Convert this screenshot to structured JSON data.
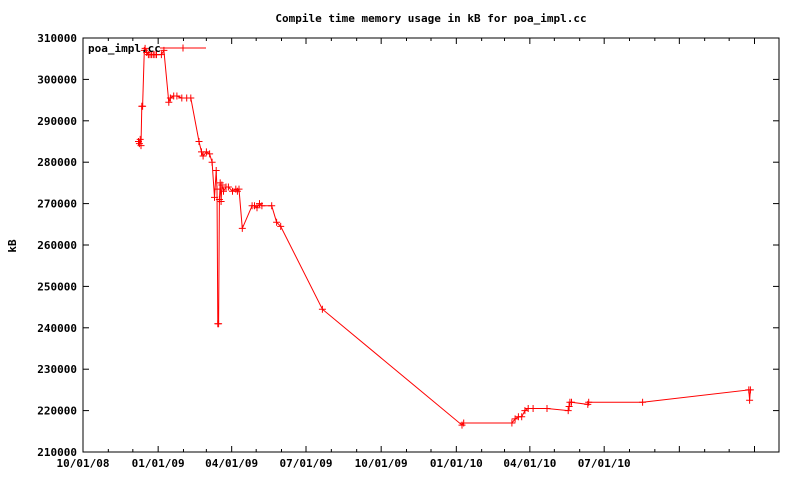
{
  "chart_data": {
    "type": "line",
    "title": "Compile time memory usage in kB for poa_impl.cc",
    "xlabel": "",
    "ylabel": "kB",
    "ylim": [
      210000,
      310000
    ],
    "yticks": [
      210000,
      220000,
      230000,
      240000,
      250000,
      260000,
      270000,
      280000,
      290000,
      300000,
      310000
    ],
    "xlim": [
      "2008-10-01",
      "2011-01-31"
    ],
    "xticks": [
      "2008-10-01",
      "2009-01-01",
      "2009-04-01",
      "2009-07-01",
      "2009-10-01",
      "2010-01-01",
      "2010-04-01",
      "2010-07-01"
    ],
    "xtick_labels": [
      "10/01/08",
      "01/01/09",
      "04/01/09",
      "07/01/09",
      "10/01/09",
      "01/01/10",
      "04/01/10",
      "07/01/10"
    ],
    "grid": false,
    "legend": "top-left",
    "color": "#ff0000",
    "series": [
      {
        "name": "poa_impl.cc",
        "points": [
          [
            "2008-12-08",
            285000
          ],
          [
            "2008-12-09",
            284500
          ],
          [
            "2008-12-10",
            285500
          ],
          [
            "2008-12-11",
            284000
          ],
          [
            "2008-12-12",
            293500
          ],
          [
            "2008-12-13",
            293500
          ],
          [
            "2008-12-15",
            307000
          ],
          [
            "2008-12-16",
            307500
          ],
          [
            "2008-12-18",
            306500
          ],
          [
            "2008-12-20",
            306000
          ],
          [
            "2008-12-22",
            306000
          ],
          [
            "2008-12-24",
            306000
          ],
          [
            "2008-12-26",
            306000
          ],
          [
            "2008-12-28",
            306000
          ],
          [
            "2008-12-30",
            306000
          ],
          [
            "2009-01-05",
            306000
          ],
          [
            "2009-01-08",
            307000
          ],
          [
            "2009-01-14",
            294500
          ],
          [
            "2009-01-16",
            295500
          ],
          [
            "2009-01-20",
            296000
          ],
          [
            "2009-01-24",
            296000
          ],
          [
            "2009-01-30",
            295500
          ],
          [
            "2009-02-05",
            295500
          ],
          [
            "2009-02-10",
            295500
          ],
          [
            "2009-02-20",
            285000
          ],
          [
            "2009-02-23",
            282500
          ],
          [
            "2009-02-25",
            281500
          ],
          [
            "2009-03-01",
            282500
          ],
          [
            "2009-03-05",
            282000
          ],
          [
            "2009-03-08",
            280000
          ],
          [
            "2009-03-11",
            271500
          ],
          [
            "2009-03-13",
            278000
          ],
          [
            "2009-03-14",
            273500
          ],
          [
            "2009-03-15",
            241000
          ],
          [
            "2009-03-16",
            241000
          ],
          [
            "2009-03-17",
            271000
          ],
          [
            "2009-03-18",
            275000
          ],
          [
            "2009-03-19",
            270500
          ],
          [
            "2009-03-20",
            274500
          ],
          [
            "2009-03-22",
            273000
          ],
          [
            "2009-03-25",
            274000
          ],
          [
            "2009-03-28",
            274000
          ],
          [
            "2009-04-02",
            273000
          ],
          [
            "2009-04-06",
            273500
          ],
          [
            "2009-04-08",
            273000
          ],
          [
            "2009-04-10",
            273500
          ],
          [
            "2009-04-14",
            264000
          ],
          [
            "2009-04-26",
            269500
          ],
          [
            "2009-04-29",
            269500
          ],
          [
            "2009-05-02",
            269000
          ],
          [
            "2009-05-05",
            270000
          ],
          [
            "2009-05-08",
            269500
          ],
          [
            "2009-05-20",
            269500
          ],
          [
            "2009-05-26",
            265500
          ],
          [
            "2009-05-31",
            264500
          ],
          [
            "2009-07-21",
            244500
          ],
          [
            "2010-01-08",
            216500
          ],
          [
            "2010-01-10",
            217000
          ],
          [
            "2010-03-10",
            217000
          ],
          [
            "2010-03-14",
            218000
          ],
          [
            "2010-03-18",
            218500
          ],
          [
            "2010-03-22",
            218500
          ],
          [
            "2010-03-26",
            220000
          ],
          [
            "2010-03-30",
            220500
          ],
          [
            "2010-04-05",
            220500
          ],
          [
            "2010-04-22",
            220500
          ],
          [
            "2010-05-18",
            220000
          ],
          [
            "2010-05-19",
            221000
          ],
          [
            "2010-05-20",
            222000
          ],
          [
            "2010-05-22",
            222000
          ],
          [
            "2010-06-11",
            221500
          ],
          [
            "2010-06-12",
            222000
          ],
          [
            "2010-08-17",
            222000
          ],
          [
            "2010-12-25",
            225000
          ],
          [
            "2010-12-26",
            222500
          ],
          [
            "2010-12-27",
            225000
          ]
        ]
      }
    ]
  }
}
